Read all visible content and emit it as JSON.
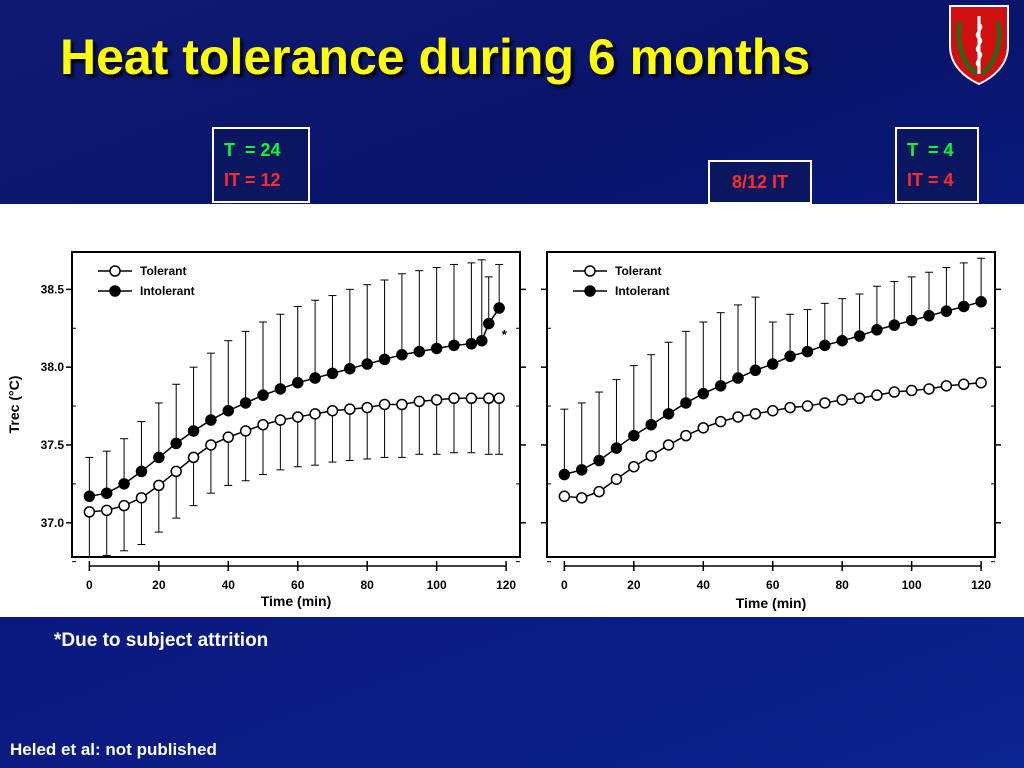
{
  "slide": {
    "title": "Heat tolerance during 6 months",
    "footnote": "*Due to subject attrition",
    "citation": "Heled et al: not published"
  },
  "left_counts": {
    "t_label": "T",
    "t_value": "= 24",
    "it_label": "IT",
    "it_value": "= 12"
  },
  "right_counts": {
    "t_label": "T",
    "t_value": "= 4",
    "it_label": "IT",
    "it_value": "= 4"
  },
  "middle_box": {
    "label": "8/12 IT"
  },
  "colors": {
    "title": "#ffff00",
    "background": "#0a1770",
    "green_text": "#00ff33",
    "red_text": "#ff2a2a",
    "emblem_red": "#d01010"
  },
  "chart_data": [
    {
      "type": "line",
      "title": "",
      "xlabel": "Time (min)",
      "ylabel": "Trec (°C)",
      "xlim": [
        -5,
        124
      ],
      "ylim": [
        36.78,
        38.74
      ],
      "xticks": [
        0,
        20,
        40,
        60,
        80,
        100,
        120
      ],
      "yticks": [
        37.0,
        37.5,
        38.0,
        38.5
      ],
      "ytick_labels": [
        "37.0",
        "37.5",
        "38.0",
        "38.5"
      ],
      "legend_position": "top-left",
      "annotation": {
        "text": "*",
        "x": 117,
        "y": 38.2
      },
      "series": [
        {
          "name": "Tolerant",
          "marker": "open-circle",
          "x": [
            0,
            5,
            10,
            15,
            20,
            25,
            30,
            35,
            40,
            45,
            50,
            55,
            60,
            65,
            70,
            75,
            80,
            85,
            90,
            95,
            100,
            105,
            110,
            115,
            118
          ],
          "y": [
            37.07,
            37.08,
            37.11,
            37.16,
            37.24,
            37.33,
            37.42,
            37.5,
            37.55,
            37.59,
            37.63,
            37.66,
            37.68,
            37.7,
            37.72,
            37.73,
            37.74,
            37.76,
            37.76,
            37.78,
            37.79,
            37.8,
            37.8,
            37.8,
            37.8
          ],
          "err": [
            0.29,
            0.29,
            0.29,
            0.3,
            0.3,
            0.3,
            0.31,
            0.31,
            0.31,
            0.32,
            0.32,
            0.32,
            0.32,
            0.33,
            0.33,
            0.33,
            0.33,
            0.34,
            0.34,
            0.34,
            0.35,
            0.35,
            0.35,
            0.36,
            0.36
          ]
        },
        {
          "name": "Intolerant",
          "marker": "filled-circle",
          "x": [
            0,
            5,
            10,
            15,
            20,
            25,
            30,
            35,
            40,
            45,
            50,
            55,
            60,
            65,
            70,
            75,
            80,
            85,
            90,
            95,
            100,
            105,
            110,
            113,
            115,
            118
          ],
          "y": [
            37.17,
            37.19,
            37.25,
            37.33,
            37.42,
            37.51,
            37.59,
            37.66,
            37.72,
            37.77,
            37.82,
            37.86,
            37.9,
            37.93,
            37.96,
            37.99,
            38.02,
            38.05,
            38.08,
            38.1,
            38.12,
            38.14,
            38.15,
            38.17,
            38.28,
            38.38
          ],
          "err": [
            0.25,
            0.27,
            0.29,
            0.32,
            0.35,
            0.38,
            0.41,
            0.43,
            0.45,
            0.46,
            0.47,
            0.48,
            0.49,
            0.5,
            0.5,
            0.51,
            0.51,
            0.51,
            0.52,
            0.52,
            0.52,
            0.52,
            0.52,
            0.52,
            0.3,
            0.28
          ]
        }
      ]
    },
    {
      "type": "line",
      "title": "",
      "xlabel": "Time (min)",
      "ylabel": "",
      "xlim": [
        -5,
        124
      ],
      "ylim": [
        36.78,
        38.74
      ],
      "xticks": [
        0,
        20,
        40,
        60,
        80,
        100,
        120
      ],
      "yticks": [
        37.0,
        37.5,
        38.0,
        38.5
      ],
      "legend_position": "top-left",
      "series": [
        {
          "name": "Tolerant",
          "marker": "open-circle",
          "x": [
            0,
            5,
            10,
            15,
            20,
            25,
            30,
            35,
            40,
            45,
            50,
            55,
            60,
            65,
            70,
            75,
            80,
            85,
            90,
            95,
            100,
            105,
            110,
            115,
            120
          ],
          "y": [
            37.17,
            37.16,
            37.2,
            37.28,
            37.36,
            37.43,
            37.5,
            37.56,
            37.61,
            37.65,
            37.68,
            37.7,
            37.72,
            37.74,
            37.75,
            37.77,
            37.79,
            37.8,
            37.82,
            37.84,
            37.85,
            37.86,
            37.88,
            37.89,
            37.9
          ]
        },
        {
          "name": "Intolerant",
          "marker": "filled-circle",
          "x": [
            0,
            5,
            10,
            15,
            20,
            25,
            30,
            35,
            40,
            45,
            50,
            55,
            60,
            65,
            70,
            75,
            80,
            85,
            90,
            95,
            100,
            105,
            110,
            115,
            120
          ],
          "y": [
            37.31,
            37.34,
            37.4,
            37.48,
            37.56,
            37.63,
            37.7,
            37.77,
            37.83,
            37.88,
            37.93,
            37.98,
            38.02,
            38.07,
            38.1,
            38.14,
            38.17,
            38.2,
            38.24,
            38.27,
            38.3,
            38.33,
            38.36,
            38.39,
            38.42
          ],
          "err": [
            0.42,
            0.43,
            0.44,
            0.44,
            0.45,
            0.45,
            0.46,
            0.46,
            0.46,
            0.47,
            0.47,
            0.47,
            0.27,
            0.27,
            0.27,
            0.27,
            0.27,
            0.27,
            0.28,
            0.28,
            0.28,
            0.28,
            0.28,
            0.28,
            0.28
          ]
        }
      ]
    }
  ]
}
